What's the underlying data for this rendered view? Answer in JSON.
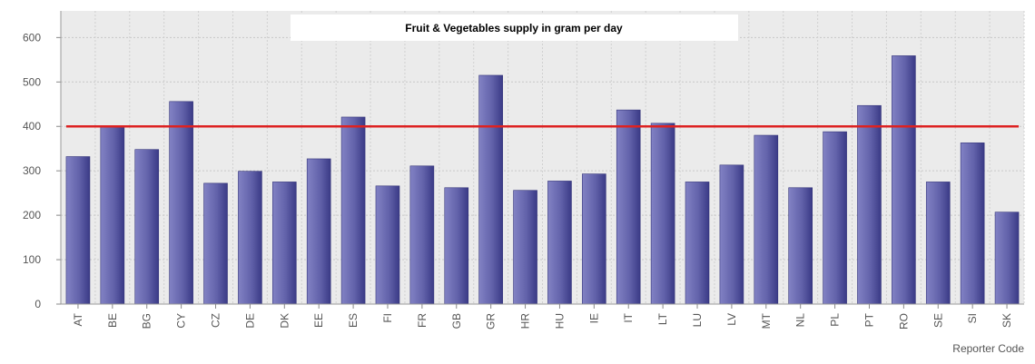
{
  "chart_data": {
    "type": "bar",
    "title": "Fruit & Vegetables supply in gram per day",
    "xlabel": "Reporter Code",
    "ylabel": "",
    "ylim": [
      0,
      660
    ],
    "yticks": [
      0,
      100,
      200,
      300,
      400,
      500,
      600
    ],
    "grid": true,
    "categories": [
      "AT",
      "BE",
      "BG",
      "CY",
      "CZ",
      "DE",
      "DK",
      "EE",
      "ES",
      "FI",
      "FR",
      "GB",
      "GR",
      "HR",
      "HU",
      "IE",
      "IT",
      "LT",
      "LU",
      "LV",
      "MT",
      "NL",
      "PL",
      "PT",
      "RO",
      "SE",
      "SI",
      "SK"
    ],
    "values": [
      332,
      398,
      348,
      456,
      272,
      299,
      275,
      327,
      421,
      266,
      311,
      262,
      515,
      256,
      277,
      293,
      437,
      407,
      275,
      313,
      380,
      262,
      388,
      447,
      559,
      275,
      363,
      207
    ],
    "reference_line": 400,
    "colors": {
      "bar": "#6b6bb0",
      "bar_dark": "#3d3d8a",
      "reference_line": "#dd2222",
      "plot_background": "#ebebeb",
      "grid": "#c8c8c8"
    }
  }
}
